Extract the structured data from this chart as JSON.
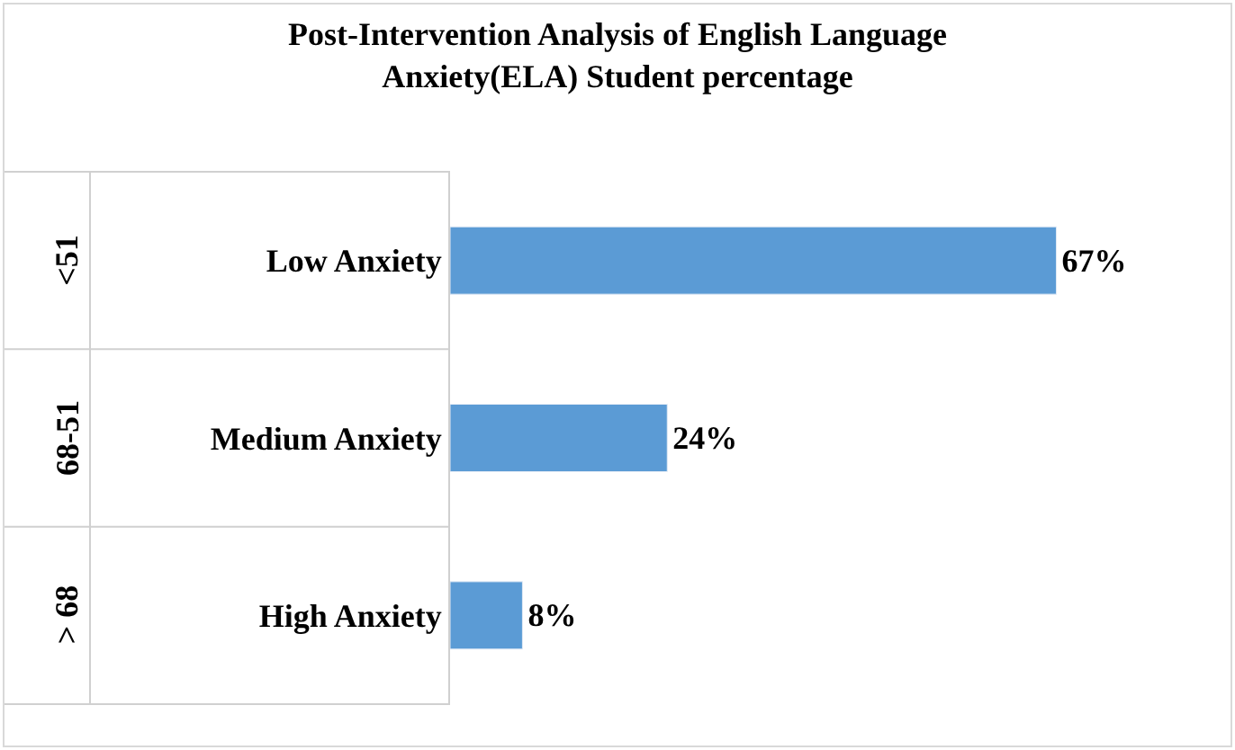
{
  "chart_data": {
    "type": "bar",
    "orientation": "horizontal",
    "title": "Post-Intervention Analysis of English Language\nAnxiety(ELA) Student percentage",
    "categories": [
      "Low Anxiety",
      "Medium Anxiety",
      "High Anxiety"
    ],
    "values": [
      67,
      24,
      8
    ],
    "color": "#5b9bd5",
    "value_labels": [
      "67%",
      "24%",
      "8%"
    ],
    "annotations": [
      "<51",
      "68-51",
      "> 68"
    ],
    "legend": false
  }
}
